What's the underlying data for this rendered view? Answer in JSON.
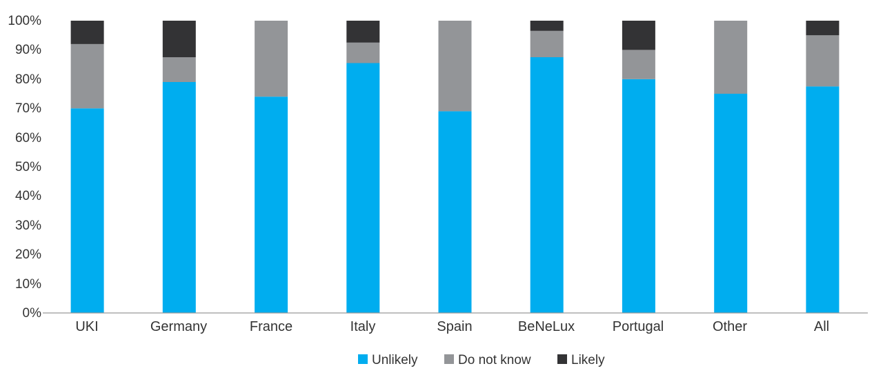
{
  "chart_data": {
    "type": "bar",
    "stacked": true,
    "title": "",
    "xlabel": "",
    "ylabel": "",
    "ylim": [
      0,
      100
    ],
    "yticks": [
      "0%",
      "10%",
      "20%",
      "30%",
      "40%",
      "50%",
      "60%",
      "70%",
      "80%",
      "90%",
      "100%"
    ],
    "categories": [
      "UKI",
      "Germany",
      "France",
      "Italy",
      "Spain",
      "BeNeLux",
      "Portugal",
      "Other",
      "All"
    ],
    "series": [
      {
        "name": "Unlikely",
        "color": "#00adef",
        "values": [
          70,
          79,
          74,
          85.5,
          69,
          87.5,
          80,
          75,
          77.5
        ]
      },
      {
        "name": "Do not know",
        "color": "#939598",
        "values": [
          22,
          8.5,
          26,
          7,
          31,
          9,
          10,
          25,
          17.5
        ]
      },
      {
        "name": "Likely",
        "color": "#333335",
        "values": [
          8,
          12.5,
          0,
          7.5,
          0,
          3.5,
          10,
          0,
          5
        ]
      }
    ],
    "legend": {
      "position": "bottom"
    }
  }
}
